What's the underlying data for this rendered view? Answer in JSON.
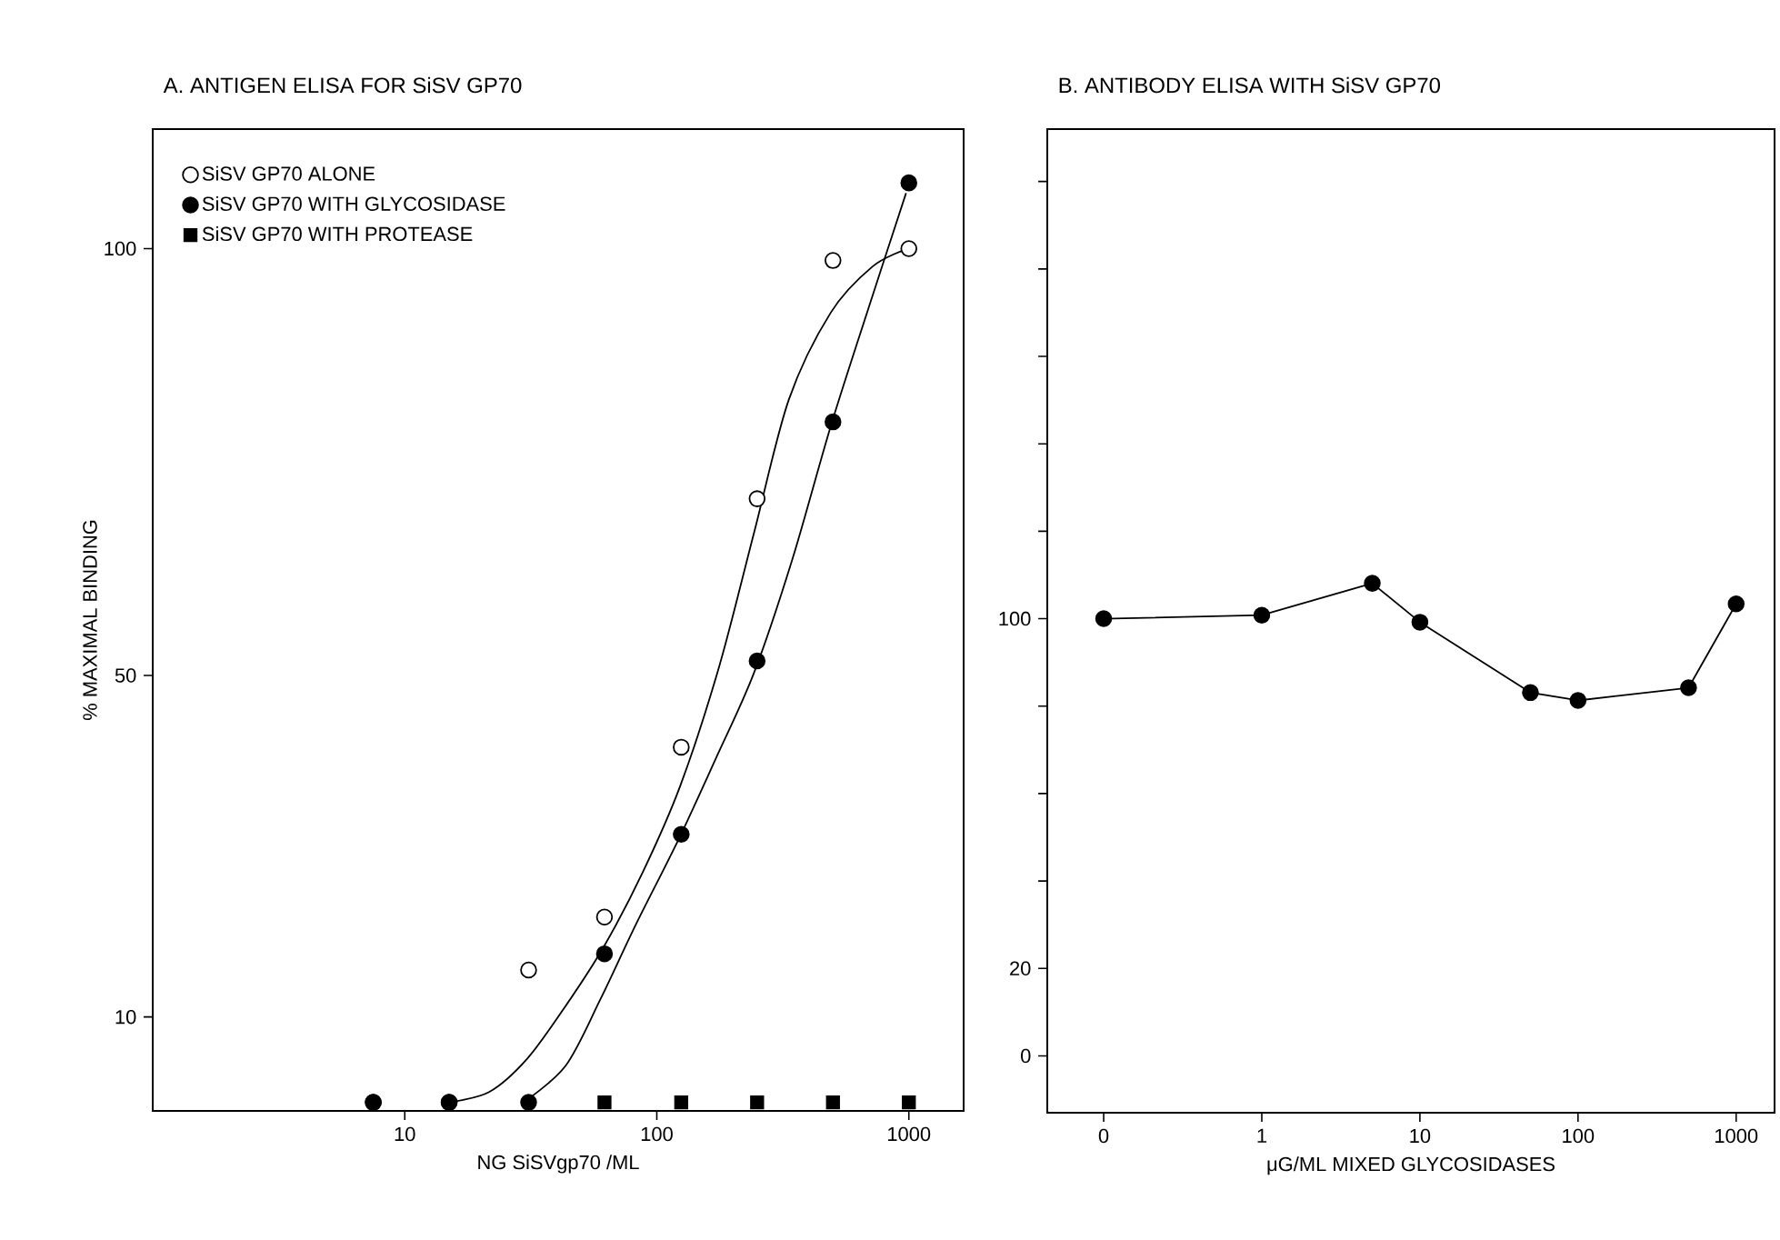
{
  "chart_data": [
    {
      "type": "scatter",
      "title": "A. ANTIGEN ELISA FOR SiSV GP70",
      "xlabel": "NG SiSVgp70 /ML",
      "ylabel": "% MAXIMAL BINDING",
      "log": "x",
      "legend": "top left",
      "xlim": [
        1,
        1650
      ],
      "ylim": [
        -1,
        114
      ],
      "xticks": [
        10,
        100,
        1000
      ],
      "yticks": [
        10,
        50,
        100
      ],
      "series": [
        {
          "name": "SiSV GP70  ALONE",
          "color": "#ffffff",
          "marker": "circle",
          "x": [
            7.5,
            15,
            31,
            62,
            125,
            250,
            500,
            1000
          ],
          "values": [
            0,
            0,
            15.5,
            21.7,
            41.6,
            70.7,
            98.6,
            100
          ]
        },
        {
          "name": "SiSV GP70  WITH  GLYCOSIDASE",
          "color": "#000000",
          "marker": "circle",
          "x": [
            7.5,
            15,
            31,
            62,
            125,
            250,
            500,
            1000
          ],
          "values": [
            0,
            0,
            0,
            17.4,
            31.4,
            51.7,
            79.7,
            107.7
          ]
        },
        {
          "name": "SiSV GP70  WITH  PROTEASE",
          "color": "#000000",
          "marker": "square",
          "x": [
            62,
            125,
            250,
            500,
            1000
          ],
          "values": [
            0,
            0,
            0,
            0,
            0
          ]
        },
        {
          "type": "line",
          "color": "#000000",
          "marker": "none",
          "x": [
            14.9,
            21.6,
            30.6,
            43.5,
            61.8,
            87.8,
            124,
            177,
            243,
            334,
            490,
            718,
            975
          ],
          "values": [
            0,
            1.2,
            5.1,
            11.3,
            18.3,
            26.9,
            37.1,
            51.1,
            66.7,
            82.3,
            92.5,
            97.9,
            99.9
          ]
        },
        {
          "type": "line",
          "color": "#000000",
          "marker": "none",
          "x": [
            29.6,
            43.5,
            59.8,
            82.2,
            122,
            171,
            243,
            345,
            490,
            695,
            975
          ],
          "values": [
            0,
            4.3,
            12.1,
            20.7,
            30.8,
            40.2,
            50.3,
            63.6,
            79.2,
            93.2,
            106.5
          ]
        }
      ]
    },
    {
      "type": "line",
      "title": "B. ANTIBODY ELISA WITH SiSV GP70",
      "xlabel": "μG/ML  MIXED  GLYCOSIDASES",
      "log": "x",
      "xlim": [
        0.044,
        1750
      ],
      "ylim": [
        -13,
        212
      ],
      "xticks": [
        {
          "value": 0.1,
          "label": "0"
        },
        1,
        10,
        100,
        1000
      ],
      "yticks": [
        0,
        20,
        {
          "value": 40,
          "label": null
        },
        {
          "value": 60,
          "label": null
        },
        {
          "value": 80,
          "label": null
        },
        100,
        {
          "value": 120,
          "label": null
        },
        {
          "value": 140,
          "label": null
        },
        {
          "value": 160,
          "label": null
        },
        {
          "value": 180,
          "label": null
        },
        {
          "value": 200,
          "label": null
        }
      ],
      "series": [
        {
          "color": "#000000",
          "marker": "circle",
          "x": [
            0.1,
            1,
            5,
            10,
            50,
            100,
            500,
            1000
          ],
          "values": [
            100,
            100.8,
            108.1,
            99.2,
            83.1,
            81.3,
            84.2,
            103.4
          ]
        }
      ]
    }
  ]
}
